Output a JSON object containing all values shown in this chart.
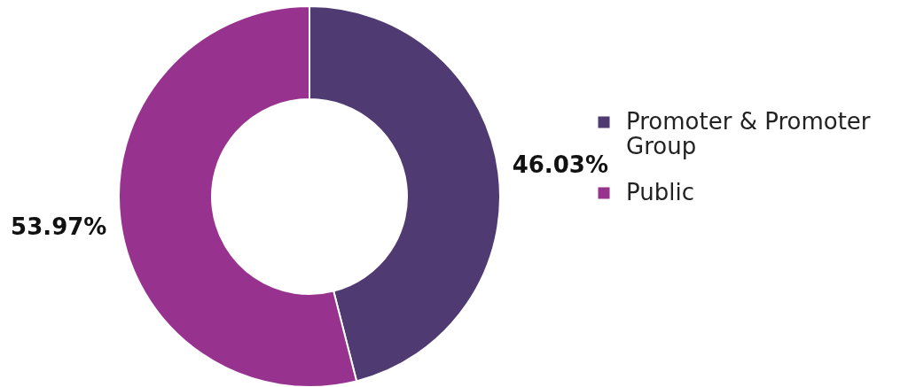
{
  "chart_data": {
    "type": "donut",
    "categories": [
      "Promoter & Promoter Group",
      "Public"
    ],
    "values": [
      46.03,
      53.97
    ],
    "colors": [
      "#4f3a72",
      "#97338f"
    ],
    "value_labels": [
      "46.03%",
      "53.97%"
    ],
    "legend": "right"
  }
}
